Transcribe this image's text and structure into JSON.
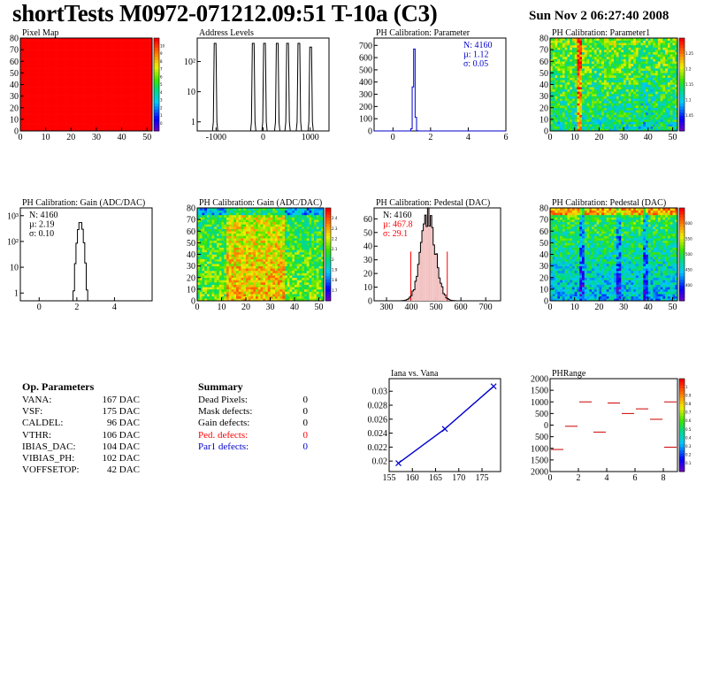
{
  "header": {
    "title": "shortTests M0972-071212.09:51 T-10a (C3)",
    "date": "Sun Nov  2 06:27:40 2008"
  },
  "op_parameters": {
    "title": "Op. Parameters",
    "rows": [
      {
        "name": "VANA:",
        "value": "167 DAC"
      },
      {
        "name": "VSF:",
        "value": "175 DAC"
      },
      {
        "name": "CALDEL:",
        "value": "96 DAC"
      },
      {
        "name": "VTHR:",
        "value": "106 DAC"
      },
      {
        "name": "IBIAS_DAC:",
        "value": "104 DAC"
      },
      {
        "name": "VIBIAS_PH:",
        "value": "102 DAC"
      },
      {
        "name": "VOFFSETOP:",
        "value": "42 DAC"
      }
    ]
  },
  "summary": {
    "title": "Summary",
    "rows": [
      {
        "name": "Dead Pixels:",
        "value": "0",
        "color": "#000000"
      },
      {
        "name": "Mask defects:",
        "value": "0",
        "color": "#000000"
      },
      {
        "name": "Gain defects:",
        "value": "0",
        "color": "#000000"
      },
      {
        "name": "Ped. defects:",
        "value": "0",
        "color": "#ff0000"
      },
      {
        "name": "Par1 defects:",
        "value": "0",
        "color": "#0000cc"
      }
    ]
  },
  "chart_data": [
    {
      "id": "pixel-map",
      "type": "heatmap",
      "title": "Pixel Map",
      "xlim": [
        0,
        52
      ],
      "ylim": [
        0,
        80
      ],
      "xticks": [
        0,
        10,
        20,
        30,
        40,
        50
      ],
      "yticks": [
        0,
        10,
        20,
        30,
        40,
        50,
        60,
        70,
        80
      ],
      "uniform_value": 10,
      "zlim": [
        0,
        10
      ],
      "zticks": [
        "0",
        "1",
        "2",
        "3",
        "4",
        "5",
        "6",
        "7",
        "8",
        "9",
        "10"
      ]
    },
    {
      "id": "address-levels",
      "type": "bar",
      "title": "Address Levels",
      "xlim": [
        -1400,
        1400
      ],
      "ylog": true,
      "ylim": [
        0.5,
        600
      ],
      "xticks": [
        -1000,
        0,
        1000
      ],
      "xtick_labels": [
        "-1000",
        "0",
        "1000"
      ],
      "yticks": [
        1,
        10,
        100
      ],
      "ytick_labels": [
        "1",
        "10",
        "10²"
      ],
      "peaks": [
        {
          "x": -1020,
          "y": 400
        },
        {
          "x": -210,
          "y": 400
        },
        {
          "x": 30,
          "y": 400
        },
        {
          "x": 300,
          "y": 400
        },
        {
          "x": 520,
          "y": 400
        },
        {
          "x": 760,
          "y": 400
        },
        {
          "x": 1010,
          "y": 300
        }
      ]
    },
    {
      "id": "ph-param",
      "type": "bar",
      "title": "PH Calibration: Parameter",
      "xlim": [
        -1,
        6
      ],
      "ylim": [
        0,
        760
      ],
      "xticks": [
        0,
        2,
        4,
        6
      ],
      "yticks": [
        0,
        100,
        200,
        300,
        400,
        500,
        600,
        700
      ],
      "mean": 1.12,
      "sigma": 0.05,
      "peak": 720,
      "stats": [
        "N: 4160",
        "µ: 1.12",
        "σ: 0.05"
      ],
      "stats_color": "#0000cc"
    },
    {
      "id": "ph-param1",
      "type": "heatmap",
      "title": "PH Calibration: Parameter1",
      "xlim": [
        0,
        52
      ],
      "ylim": [
        0,
        80
      ],
      "xticks": [
        0,
        10,
        20,
        30,
        40,
        50
      ],
      "yticks": [
        0,
        10,
        20,
        30,
        40,
        50,
        60,
        70,
        80
      ],
      "zlim": [
        0.95,
        1.3
      ],
      "zticks": [
        "1.05",
        "1.1",
        "1.15",
        "1.2",
        "1.25"
      ]
    },
    {
      "id": "gain-hist",
      "type": "bar",
      "title": "PH Calibration: Gain (ADC/DAC)",
      "xlim": [
        -1,
        6
      ],
      "ylog": true,
      "ylim": [
        0.5,
        2000
      ],
      "xticks": [
        0,
        2,
        4
      ],
      "yticks": [
        1,
        10,
        100,
        1000
      ],
      "ytick_labels": [
        "1",
        "10",
        "10²",
        "10³"
      ],
      "mean": 2.19,
      "sigma": 0.1,
      "peak": 580,
      "stats": [
        "N: 4160",
        "µ: 2.19",
        "σ: 0.10"
      ],
      "stats_color": "#000000"
    },
    {
      "id": "gain-map",
      "type": "heatmap",
      "title": "PH Calibration: Gain (ADC/DAC)",
      "xlim": [
        0,
        52
      ],
      "ylim": [
        0,
        80
      ],
      "xticks": [
        0,
        10,
        20,
        30,
        40,
        50
      ],
      "yticks": [
        0,
        10,
        20,
        30,
        40,
        50,
        60,
        70,
        80
      ],
      "zlim": [
        1.65,
        2.45
      ],
      "zticks": [
        "1.7",
        "1.8",
        "1.9",
        "2",
        "2.1",
        "2.2",
        "2.3",
        "2.4"
      ]
    },
    {
      "id": "pedestal-hist",
      "type": "bar",
      "title": "PH Calibration: Pedestal (DAC)",
      "xlim": [
        250,
        760
      ],
      "ylim": [
        0,
        68
      ],
      "xticks": [
        300,
        400,
        500,
        600,
        700
      ],
      "yticks": [
        0,
        10,
        20,
        30,
        40,
        50,
        60
      ],
      "mean": 467.8,
      "sigma": 29.1,
      "peak": 62,
      "cut_lines": [
        398,
        545
      ],
      "cut_height": 36,
      "stats": [
        "N: 4160",
        "µ: 467.8",
        "σ: 29.1"
      ],
      "stats_colors": [
        "#000000",
        "#ff0000",
        "#ff0000"
      ]
    },
    {
      "id": "pedestal-map",
      "type": "heatmap",
      "title": "PH Calibration: Pedestal (DAC)",
      "xlim": [
        0,
        52
      ],
      "ylim": [
        0,
        80
      ],
      "xticks": [
        0,
        10,
        20,
        30,
        40,
        50
      ],
      "yticks": [
        0,
        10,
        20,
        30,
        40,
        50,
        60,
        70,
        80
      ],
      "zlim": [
        380,
        620
      ],
      "zticks": [
        "400",
        "450",
        "500",
        "550",
        "600"
      ]
    },
    {
      "id": "iana-vana",
      "type": "line",
      "title": "Iana vs. Vana",
      "xlim": [
        155,
        179
      ],
      "ylim": [
        0.0185,
        0.0318
      ],
      "xticks": [
        155,
        160,
        165,
        170,
        175
      ],
      "yticks": [
        0.02,
        0.022,
        0.024,
        0.026,
        0.028,
        0.03
      ],
      "ytick_labels": [
        "0.02",
        "0.022",
        "0.024",
        "0.026",
        "0.028",
        "0.03"
      ],
      "points": [
        [
          157,
          0.0197
        ],
        [
          167,
          0.0246
        ],
        [
          177.5,
          0.0307
        ]
      ],
      "color": "#0000cc"
    },
    {
      "id": "phrange",
      "type": "heatmap",
      "title": "PHRange",
      "xlim": [
        0,
        9
      ],
      "ylim": [
        -2000,
        2000
      ],
      "xticks": [
        0,
        2,
        4,
        6,
        8
      ],
      "yticks": [
        -2000,
        -1500,
        -1000,
        -500,
        0,
        500,
        1000,
        1500,
        2000
      ],
      "ytick_labels": [
        "2000",
        "1500",
        "1000",
        "500",
        "0",
        "500",
        "1000",
        "1500",
        "2000"
      ],
      "segments": [
        {
          "x": 0,
          "y": -1050
        },
        {
          "x": 1,
          "y": -50
        },
        {
          "x": 2,
          "y": 1000
        },
        {
          "x": 3,
          "y": -300
        },
        {
          "x": 4,
          "y": 950
        },
        {
          "x": 5,
          "y": 500
        },
        {
          "x": 6,
          "y": 700
        },
        {
          "x": 7,
          "y": 250
        },
        {
          "x": 8,
          "y": 1000
        },
        {
          "x": 8,
          "y": -950
        }
      ],
      "zlim": [
        0,
        1
      ],
      "zticks": [
        "0.1",
        "0.2",
        "0.3",
        "0.4",
        "0.5",
        "0.6",
        "0.7",
        "0.8",
        "0.9",
        "1"
      ]
    }
  ]
}
